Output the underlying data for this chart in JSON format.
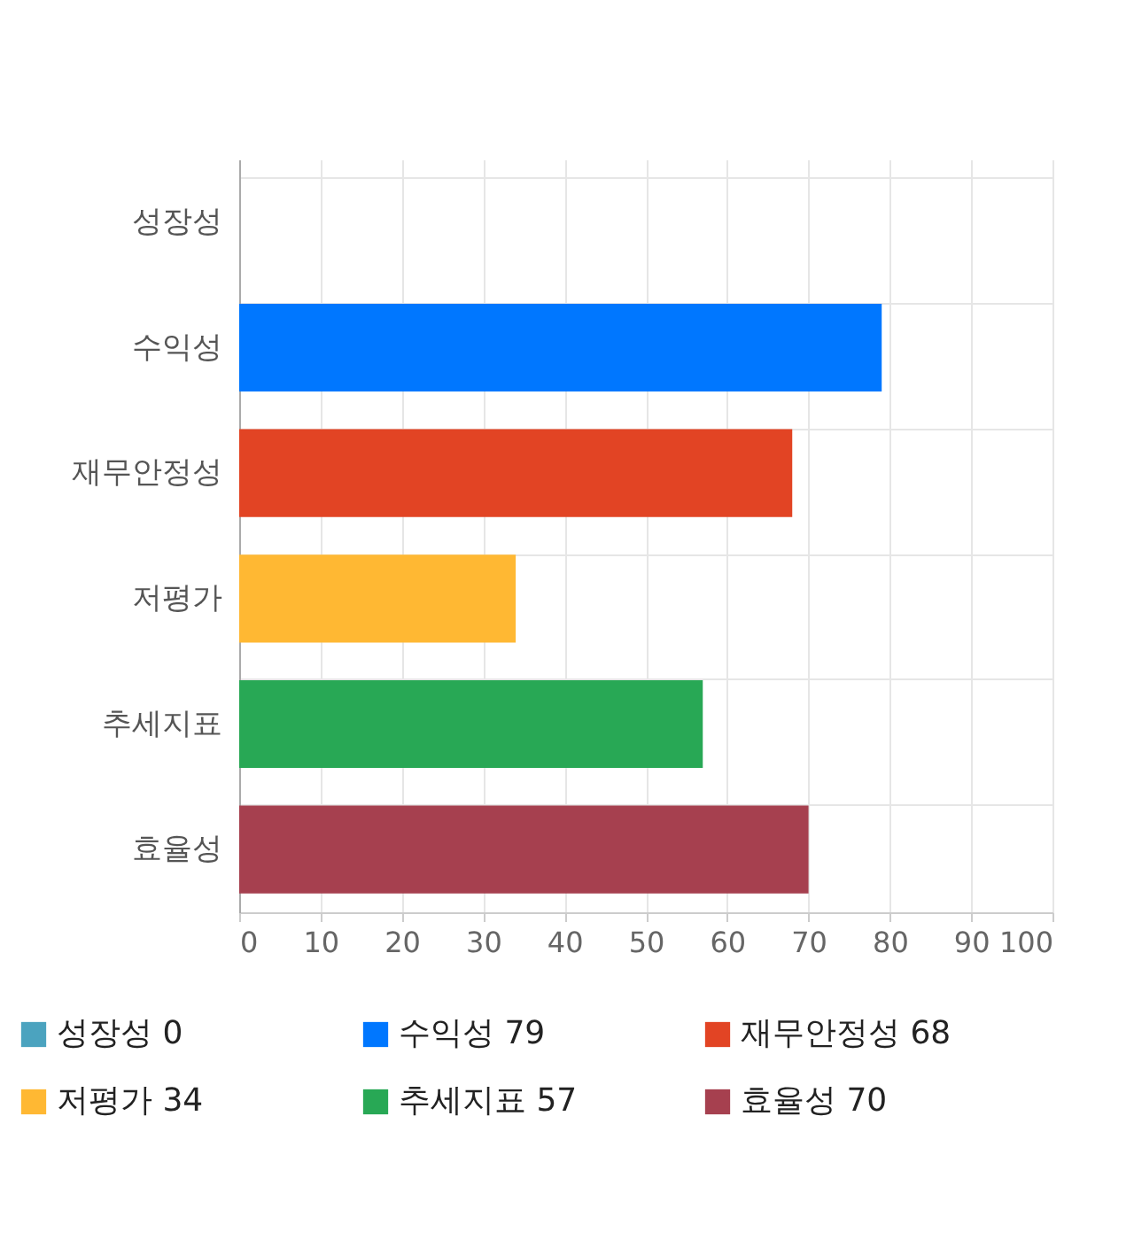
{
  "chart_data": {
    "type": "bar",
    "orientation": "horizontal",
    "categories": [
      "성장성",
      "수익성",
      "재무안정성",
      "저평가",
      "추세지표",
      "효율성"
    ],
    "series": [
      {
        "name": "성장성 0",
        "color": "#4ba3bf",
        "values": [
          0,
          null,
          null,
          null,
          null,
          null
        ]
      },
      {
        "name": "수익성 79",
        "color": "#0077ff",
        "values": [
          null,
          79,
          null,
          null,
          null,
          null
        ]
      },
      {
        "name": "재무안정성 68",
        "color": "#e24424",
        "values": [
          null,
          null,
          68,
          null,
          null,
          null
        ]
      },
      {
        "name": "저평가 34",
        "color": "#ffb833",
        "values": [
          null,
          null,
          null,
          34,
          null,
          null
        ]
      },
      {
        "name": "추세지표 57",
        "color": "#28a855",
        "values": [
          null,
          null,
          null,
          null,
          57,
          null
        ]
      },
      {
        "name": "효율성 70",
        "color": "#a6404f",
        "values": [
          null,
          null,
          null,
          null,
          null,
          70
        ]
      }
    ],
    "xlim": [
      0,
      100
    ],
    "xticks": [
      0,
      10,
      20,
      30,
      40,
      50,
      60,
      70,
      80,
      90,
      100
    ],
    "grid": true,
    "legend": "bottom"
  }
}
